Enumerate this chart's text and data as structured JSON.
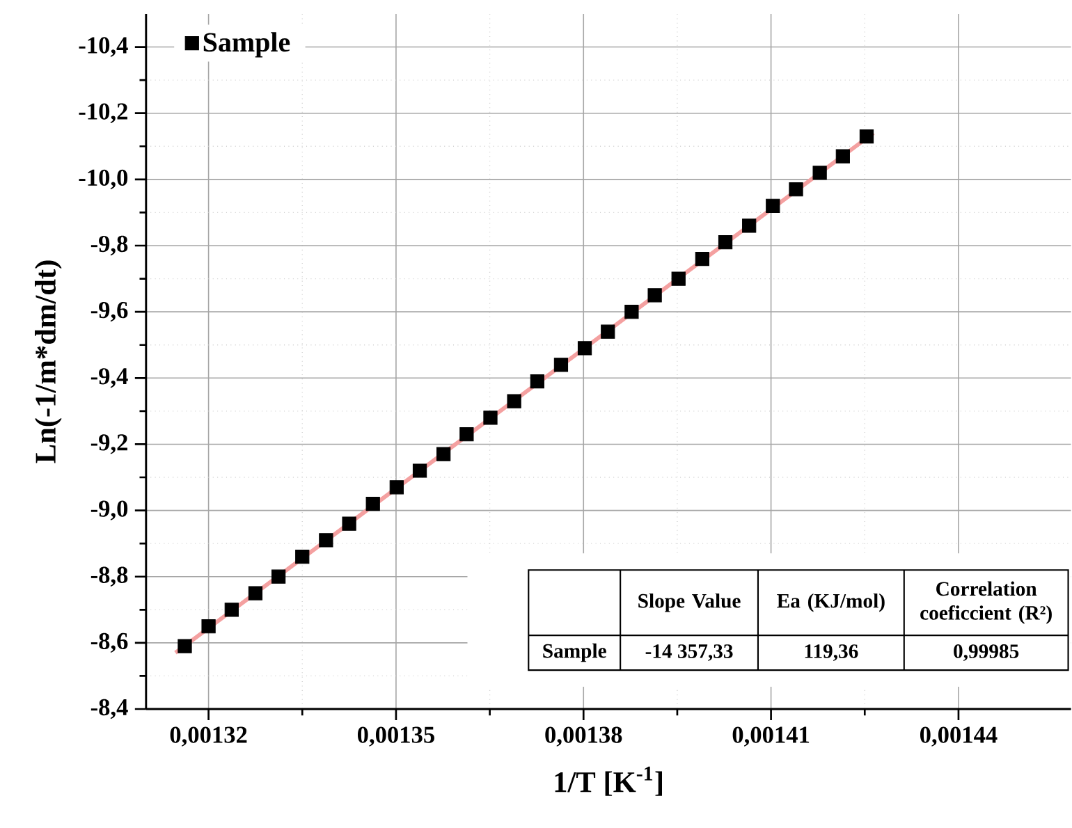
{
  "chart_data": {
    "type": "scatter",
    "xlabel": "1/T [K$^{-1}$]",
    "ylabel": "Ln(-1/m*dm/dt)",
    "xlim": [
      0.00131,
      0.001458
    ],
    "ylim": [
      -8.4,
      -10.5
    ],
    "xticks": [
      {
        "value": 0.00132,
        "label": "0,00132"
      },
      {
        "value": 0.00135,
        "label": "0,00135"
      },
      {
        "value": 0.00138,
        "label": "0,00138"
      },
      {
        "value": 0.00141,
        "label": "0,00141"
      },
      {
        "value": 0.00144,
        "label": "0,00144"
      }
    ],
    "yticks": [
      {
        "value": -8.4,
        "label": "-8,4"
      },
      {
        "value": -8.6,
        "label": "-8,6"
      },
      {
        "value": -8.8,
        "label": "-8,8"
      },
      {
        "value": -9.0,
        "label": "-9,0"
      },
      {
        "value": -9.2,
        "label": "-9,2"
      },
      {
        "value": -9.4,
        "label": "-9,4"
      },
      {
        "value": -9.6,
        "label": "-9,6"
      },
      {
        "value": -9.8,
        "label": "-9,8"
      },
      {
        "value": -10.0,
        "label": "-10,0"
      },
      {
        "value": -10.2,
        "label": "-10,2"
      },
      {
        "value": -10.4,
        "label": "-10,4"
      }
    ],
    "grid": true,
    "legend": "top left",
    "series": [
      {
        "name": "Sample",
        "color": "#000000",
        "marker": "square",
        "x": [
          0.0013162,
          0.00132,
          0.0013237,
          0.0013275,
          0.0013312,
          0.001335,
          0.0013388,
          0.0013425,
          0.0013463,
          0.0013501,
          0.0013538,
          0.0013576,
          0.0013613,
          0.0013651,
          0.0013689,
          0.0013726,
          0.0013764,
          0.0013802,
          0.0013839,
          0.0013877,
          0.0013914,
          0.0013952,
          0.001399,
          0.0014027,
          0.0014065,
          0.0014103,
          0.001414,
          0.0014178,
          0.0014215,
          0.0014253
        ],
        "values": [
          -8.59,
          -8.65,
          -8.7,
          -8.75,
          -8.8,
          -8.86,
          -8.91,
          -8.96,
          -9.02,
          -9.07,
          -9.12,
          -9.17,
          -9.23,
          -9.28,
          -9.33,
          -9.39,
          -9.44,
          -9.49,
          -9.54,
          -9.6,
          -9.65,
          -9.7,
          -9.76,
          -9.81,
          -9.86,
          -9.92,
          -9.97,
          -10.02,
          -10.07,
          -10.13
        ]
      },
      {
        "type": "line",
        "color": "#f4a0a0",
        "x": [
          0.0013147,
          0.0014264
        ],
        "values": [
          -8.57,
          -10.14
        ]
      }
    ],
    "annotations": [
      "Slope Value",
      "Ea (KJ/mol)",
      "Correlation coeficcient (R²)",
      "Sample",
      "-14 357,33",
      "119,36",
      "0,99985"
    ]
  }
}
